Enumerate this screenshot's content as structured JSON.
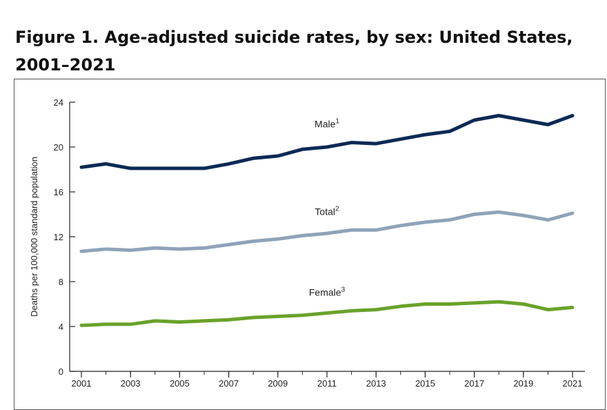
{
  "figure": {
    "title": "Figure 1. Age-adjusted suicide rates, by sex: United States, 2001–2021"
  },
  "chart_data": {
    "type": "line",
    "title": "Figure 1. Age-adjusted suicide rates, by sex: United States, 2001–2021",
    "xlabel": "",
    "ylabel": "Deaths per 100,000 standard population",
    "ylim": [
      0,
      24
    ],
    "xlim": [
      2001,
      2021
    ],
    "yticks": [
      "0",
      "4",
      "8",
      "12",
      "16",
      "20",
      "24"
    ],
    "xticks": [
      "2001",
      "2003",
      "2005",
      "2007",
      "2009",
      "2011",
      "2013",
      "2015",
      "2017",
      "2019",
      "2021"
    ],
    "grid": false,
    "x": [
      2001,
      2002,
      2003,
      2004,
      2005,
      2006,
      2007,
      2008,
      2009,
      2010,
      2011,
      2012,
      2013,
      2014,
      2015,
      2016,
      2017,
      2018,
      2019,
      2020,
      2021
    ],
    "series": [
      {
        "name": "Male",
        "footnote": "1",
        "color": "#0b2a55",
        "values": [
          18.2,
          18.5,
          18.1,
          18.1,
          18.1,
          18.1,
          18.5,
          19.0,
          19.2,
          19.8,
          20.0,
          20.4,
          20.3,
          20.7,
          21.1,
          21.4,
          22.4,
          22.8,
          22.4,
          22.0,
          22.8
        ]
      },
      {
        "name": "Total",
        "footnote": "2",
        "color": "#8fa3b8",
        "values": [
          10.7,
          10.9,
          10.8,
          11.0,
          10.9,
          11.0,
          11.3,
          11.6,
          11.8,
          12.1,
          12.3,
          12.6,
          12.6,
          13.0,
          13.3,
          13.5,
          14.0,
          14.2,
          13.9,
          13.5,
          14.1
        ]
      },
      {
        "name": "Female",
        "footnote": "3",
        "color": "#6aa22a",
        "values": [
          4.1,
          4.2,
          4.2,
          4.5,
          4.4,
          4.5,
          4.6,
          4.8,
          4.9,
          5.0,
          5.2,
          5.4,
          5.5,
          5.8,
          6.0,
          6.0,
          6.1,
          6.2,
          6.0,
          5.5,
          5.7
        ]
      }
    ]
  }
}
